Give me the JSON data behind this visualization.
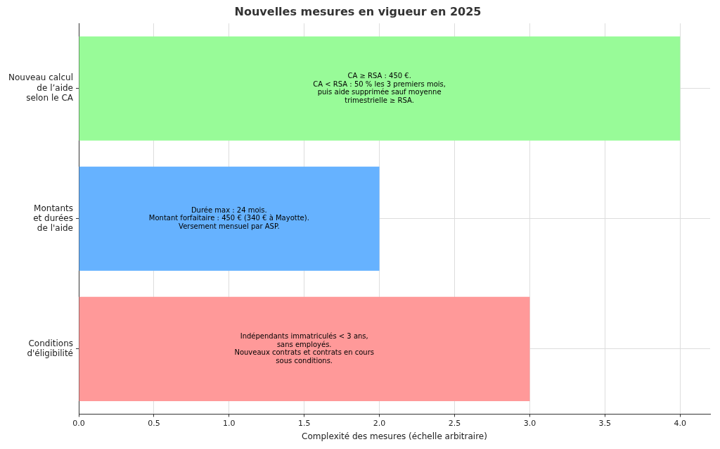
{
  "chart_data": {
    "type": "bar",
    "orientation": "horizontal",
    "title": "Nouvelles mesures en vigueur en 2025",
    "xlabel": "Complexité des mesures (échelle arbitraire)",
    "categories": [
      "Nouveau calcul\nde l’aide\nselon le CA",
      "Montants\net durées\nde l'aide",
      "Conditions\nd'éligibilité"
    ],
    "values": [
      4,
      2,
      3
    ],
    "colors": [
      "#98fb98",
      "#66b2ff",
      "#ff9999"
    ],
    "xlim": [
      0,
      4.2
    ],
    "xticks": [
      {
        "value": 0,
        "label": "0.0"
      },
      {
        "value": 0.5,
        "label": "0.5"
      },
      {
        "value": 1,
        "label": "1.0"
      },
      {
        "value": 1.5,
        "label": "1.5"
      },
      {
        "value": 2,
        "label": "2.0"
      },
      {
        "value": 2.5,
        "label": "2.5"
      },
      {
        "value": 3,
        "label": "3.0"
      },
      {
        "value": 3.5,
        "label": "3.5"
      },
      {
        "value": 4,
        "label": "4.0"
      }
    ],
    "grid": true,
    "legend": false,
    "annotations": [
      "CA ≥ RSA : 450 €.\nCA < RSA : 50 % les 3 premiers mois,\npuis aide supprimée sauf moyenne\ntrimestrielle ≥ RSA.",
      "Durée max : 24 mois.\nMontant forfaitaire : 450 € (340 € à Mayotte).\nVersement mensuel par ASP.",
      "Indépendants immatriculés < 3 ans,\nsans employés.\nNouveaux contrats et contrats en cours\nsous conditions."
    ]
  }
}
